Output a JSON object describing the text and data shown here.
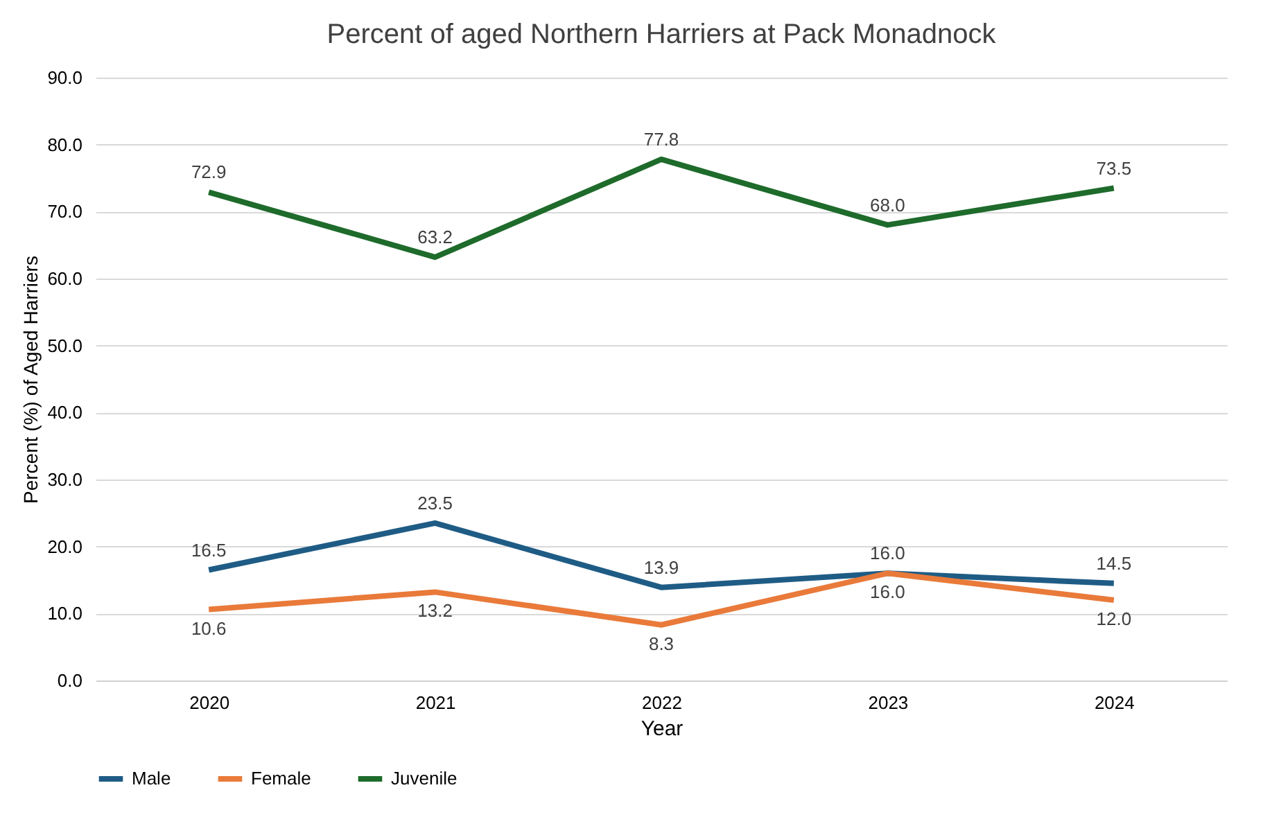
{
  "chart_data": {
    "type": "line",
    "title": "Percent of aged Northern Harriers at Pack Monadnock",
    "xlabel": "Year",
    "ylabel": "Percent (%) of Aged Harriers",
    "categories": [
      "2020",
      "2021",
      "2022",
      "2023",
      "2024"
    ],
    "series": [
      {
        "name": "Male",
        "color": "#1f5c85",
        "values": [
          16.5,
          23.5,
          13.9,
          16.0,
          14.5
        ],
        "value_labels": [
          "16.5",
          "23.5",
          "13.9",
          "16.0",
          "14.5"
        ]
      },
      {
        "name": "Female",
        "color": "#e97a3a",
        "values": [
          10.6,
          13.2,
          8.3,
          16.0,
          12.0
        ],
        "value_labels": [
          "10.6",
          "13.2",
          "8.3",
          "16.0",
          "12.0"
        ]
      },
      {
        "name": "Juvenile",
        "color": "#1e6b2b",
        "values": [
          72.9,
          63.2,
          77.8,
          68.0,
          73.5
        ],
        "value_labels": [
          "72.9",
          "63.2",
          "77.8",
          "68.0",
          "73.5"
        ]
      }
    ],
    "ylim": [
      0,
      90
    ],
    "yticks": [
      {
        "value": 0,
        "label": "0.0"
      },
      {
        "value": 10,
        "label": "10.0"
      },
      {
        "value": 20,
        "label": "20.0"
      },
      {
        "value": 30,
        "label": "30.0"
      },
      {
        "value": 40,
        "label": "40.0"
      },
      {
        "value": 50,
        "label": "50.0"
      },
      {
        "value": 60,
        "label": "60.0"
      },
      {
        "value": 70,
        "label": "70.0"
      },
      {
        "value": 80,
        "label": "80.0"
      },
      {
        "value": 90,
        "label": "90.0"
      }
    ],
    "grid": "y",
    "legend": "bottom",
    "marker": "none",
    "line_style": "solid"
  }
}
